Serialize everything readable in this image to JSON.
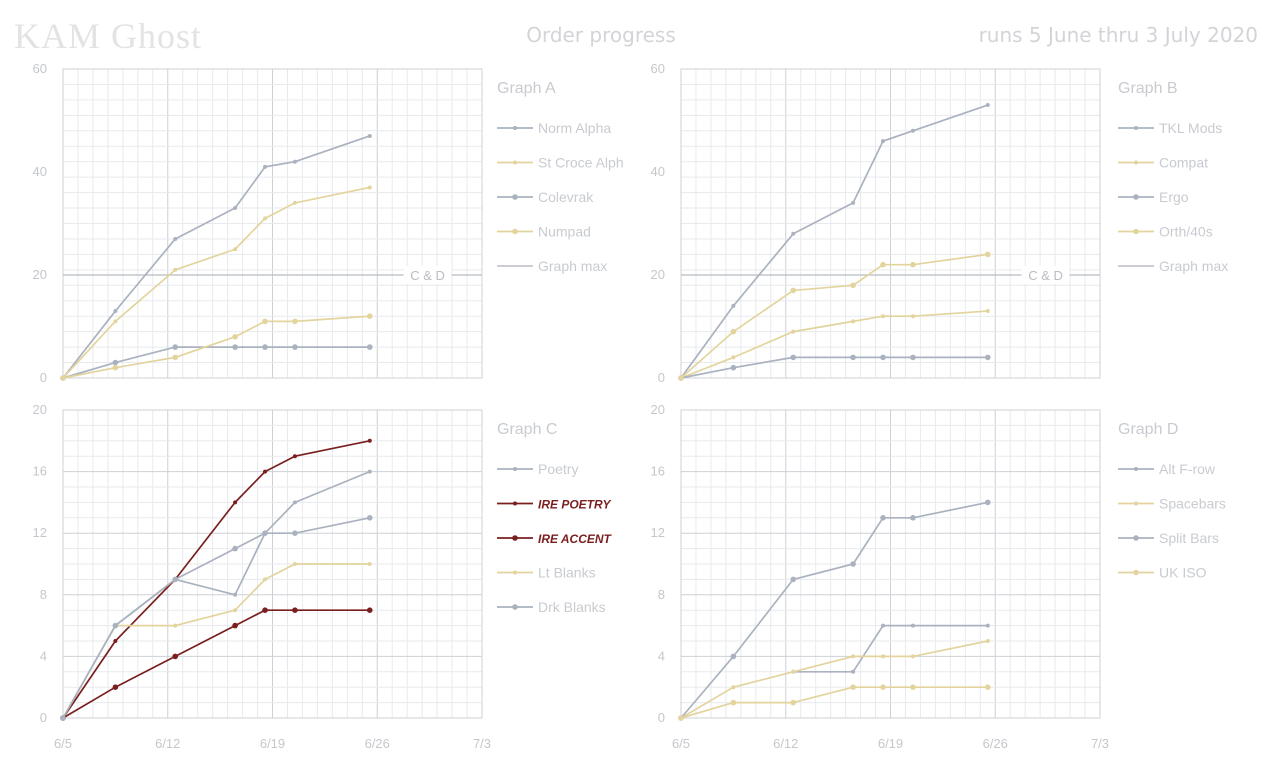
{
  "header": {
    "brand": "KAM Ghost",
    "title": "Order progress",
    "date_range": "runs 5 June thru 3 July 2020"
  },
  "colors": {
    "grey": "#aab2bf",
    "tan": "#e3d49d",
    "maroon": "#7a1f1f",
    "grid_minor": "#e8eaed",
    "grid_major": "#cdd0d5",
    "ref": "#c2c6cc"
  },
  "x_ticks": [
    "6/5",
    "6/12",
    "6/19",
    "6/26",
    "7/3"
  ],
  "chart_data": [
    {
      "id": "A",
      "type": "line",
      "title": "Graph A",
      "ylim": [
        0,
        60
      ],
      "yticks": [
        "0",
        "20",
        "40",
        "60"
      ],
      "x": [
        0,
        3.5,
        7.5,
        11.5,
        13.5,
        15.5,
        20.5
      ],
      "xlim": [
        0,
        28
      ],
      "reference": {
        "name": "Graph max",
        "value": 20,
        "label": "C & D"
      },
      "series": [
        {
          "name": "Norm Alpha",
          "color": "grey",
          "marker": "small",
          "values": [
            0,
            13,
            27,
            33,
            41,
            42,
            47
          ]
        },
        {
          "name": "St Croce Alph",
          "color": "tan",
          "marker": "small",
          "values": [
            0,
            11,
            21,
            25,
            31,
            34,
            37
          ]
        },
        {
          "name": "Colevrak",
          "color": "grey",
          "marker": "dot",
          "values": [
            0,
            3,
            6,
            6,
            6,
            6,
            6
          ]
        },
        {
          "name": "Numpad",
          "color": "tan",
          "marker": "dot",
          "values": [
            0,
            2,
            4,
            8,
            11,
            11,
            12
          ]
        }
      ],
      "legend": [
        "Norm Alpha",
        "St Croce Alph",
        "Colevrak",
        "Numpad",
        "Graph max"
      ]
    },
    {
      "id": "B",
      "type": "line",
      "title": "Graph B",
      "ylim": [
        0,
        60
      ],
      "yticks": [
        "0",
        "20",
        "40",
        "60"
      ],
      "x": [
        0,
        3.5,
        7.5,
        11.5,
        13.5,
        15.5,
        20.5
      ],
      "xlim": [
        0,
        28
      ],
      "reference": {
        "name": "Graph max",
        "value": 20,
        "label": "C & D"
      },
      "series": [
        {
          "name": "TKL Mods",
          "color": "grey",
          "marker": "small",
          "values": [
            0,
            14,
            28,
            34,
            46,
            48,
            53
          ]
        },
        {
          "name": "Compat",
          "color": "tan",
          "marker": "small",
          "values": [
            0,
            4,
            9,
            11,
            12,
            12,
            13
          ]
        },
        {
          "name": "Ergo",
          "color": "grey",
          "marker": "dot",
          "values": [
            0,
            2,
            4,
            4,
            4,
            4,
            4
          ]
        },
        {
          "name": "Orth/40s",
          "color": "tan",
          "marker": "dot",
          "values": [
            0,
            9,
            17,
            18,
            22,
            22,
            24
          ]
        }
      ],
      "legend": [
        "TKL Mods",
        "Compat",
        "Ergo",
        "Orth/40s",
        "Graph max"
      ]
    },
    {
      "id": "C",
      "type": "line",
      "title": "Graph C",
      "ylim": [
        0,
        20
      ],
      "yticks": [
        "0",
        "4",
        "8",
        "12",
        "16",
        "20"
      ],
      "x": [
        0,
        3.5,
        7.5,
        11.5,
        13.5,
        15.5,
        20.5
      ],
      "xlim": [
        0,
        28
      ],
      "series": [
        {
          "name": "Poetry",
          "color": "grey",
          "marker": "small",
          "values": [
            0,
            6,
            9,
            8,
            12,
            14,
            16
          ]
        },
        {
          "name": "IRE POETRY",
          "color": "maroon",
          "marker": "small",
          "values": [
            0,
            5,
            9,
            14,
            16,
            17,
            18
          ]
        },
        {
          "name": "IRE ACCENT",
          "color": "maroon",
          "marker": "dot",
          "values": [
            0,
            2,
            4,
            6,
            7,
            7,
            7
          ]
        },
        {
          "name": "Lt Blanks",
          "color": "tan",
          "marker": "small",
          "values": [
            0,
            6,
            6,
            7,
            9,
            10,
            10
          ]
        },
        {
          "name": "Drk Blanks",
          "color": "grey",
          "marker": "dot",
          "values": [
            0,
            6,
            9,
            11,
            12,
            12,
            13
          ]
        }
      ],
      "legend": [
        "Poetry",
        "IRE POETRY",
        "IRE ACCENT",
        "Lt Blanks",
        "Drk Blanks"
      ]
    },
    {
      "id": "D",
      "type": "line",
      "title": "Graph D",
      "ylim": [
        0,
        20
      ],
      "yticks": [
        "0",
        "4",
        "8",
        "12",
        "16",
        "20"
      ],
      "x": [
        0,
        3.5,
        7.5,
        11.5,
        13.5,
        15.5,
        20.5
      ],
      "xlim": [
        0,
        28
      ],
      "series": [
        {
          "name": "Alt F-row",
          "color": "grey",
          "marker": "small",
          "x": [
            7.5,
            11.5,
            13.5,
            15.5,
            20.5
          ],
          "values": [
            3,
            3,
            6,
            6,
            6
          ]
        },
        {
          "name": "Spacebars",
          "color": "tan",
          "marker": "small",
          "values": [
            0,
            2,
            3,
            4,
            4,
            4,
            5
          ]
        },
        {
          "name": "Split Bars",
          "color": "grey",
          "marker": "dot",
          "values": [
            0,
            4,
            9,
            10,
            13,
            13,
            14
          ]
        },
        {
          "name": "UK ISO",
          "color": "tan",
          "marker": "dot",
          "values": [
            0,
            1,
            1,
            2,
            2,
            2,
            2
          ]
        }
      ],
      "legend": [
        "Alt F-row",
        "Spacebars",
        "Split Bars",
        "UK ISO"
      ]
    }
  ]
}
